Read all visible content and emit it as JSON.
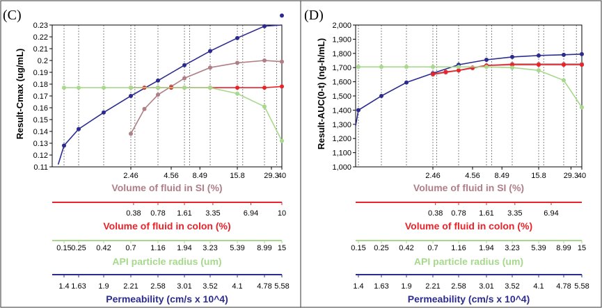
{
  "colors": {
    "si": "#b07e86",
    "colon": "#e8232a",
    "radius": "#a6d98c",
    "perm": "#2b2b8f",
    "grid": "#555555"
  },
  "chart_data": [
    {
      "type": "line",
      "panel_label": "(C)",
      "ylabel": "Result-Cmax (ug/mL)",
      "ylim": [
        0.11,
        0.23
      ],
      "yticks": [
        "0.11",
        "0.12",
        "0.13",
        "0.14",
        "0.15",
        "0.16",
        "0.17",
        "0.18",
        "0.19",
        "0.2",
        "0.21",
        "0.22",
        "0.23"
      ],
      "x_axes": [
        {
          "key": "si",
          "label": "Volume of fluid in SI (%)",
          "ticks": [
            "2.46",
            "4.56",
            "8.49",
            "15.8",
            "29.3",
            "40"
          ]
        },
        {
          "key": "colon",
          "label": "Volume of fluid in colon (%)",
          "ticks": [
            "0.38",
            "0.78",
            "1.61",
            "3.35",
            "6.94",
            "10"
          ]
        },
        {
          "key": "radius",
          "label": "API particle radius (um)",
          "ticks": [
            "0.15",
            "0.25",
            "0.42",
            "0.7",
            "1.16",
            "1.94",
            "3.23",
            "5.39",
            "8.99",
            "15"
          ]
        },
        {
          "key": "perm",
          "label": "Permeability (cm/s x 10^4)",
          "ticks": [
            "1.4",
            "1.63",
            "1.9",
            "2.21",
            "2.58",
            "3.01",
            "3.52",
            "4.1",
            "4.78",
            "5.58"
          ]
        }
      ],
      "series": [
        {
          "name": "Permeability",
          "key": "perm",
          "x": [
            0,
            1,
            2,
            3,
            4,
            5,
            6,
            7,
            8,
            9
          ],
          "y": [
            0.128,
            0.142,
            0.156,
            0.17,
            0.183,
            0.196,
            0.208,
            0.219,
            0.229,
            0.238
          ],
          "curve": [
            [
              -0.4,
              0.112
            ],
            [
              9.6,
              0.23
            ]
          ]
        },
        {
          "name": "Volume of fluid in SI",
          "key": "si",
          "x": [
            3,
            3.5,
            4,
            4.5,
            5,
            6,
            7,
            8,
            9
          ],
          "y": [
            0.138,
            0.159,
            0.171,
            0.178,
            0.185,
            0.194,
            0.198,
            0.2,
            0.199
          ]
        },
        {
          "name": "Volume of fluid in colon",
          "key": "colon",
          "x": [
            3,
            3.5,
            4,
            4.5,
            5,
            6,
            7,
            8,
            9
          ],
          "y": [
            0.177,
            0.177,
            0.177,
            0.177,
            0.177,
            0.177,
            0.177,
            0.177,
            0.178
          ]
        },
        {
          "name": "API particle radius",
          "key": "radius",
          "x": [
            0,
            1,
            2,
            3,
            4,
            5,
            6,
            7,
            8,
            9
          ],
          "y": [
            0.177,
            0.177,
            0.177,
            0.177,
            0.177,
            0.177,
            0.177,
            0.172,
            0.161,
            0.132
          ]
        }
      ]
    },
    {
      "type": "line",
      "panel_label": "(D)",
      "ylabel": "Result-AUC(0-t) (ng-h/mL)",
      "ylim": [
        1000,
        2000
      ],
      "yticks": [
        "1,000",
        "1,100",
        "1,200",
        "1,300",
        "1,400",
        "1,500",
        "1,600",
        "1,700",
        "1,800",
        "1,900",
        "2,000"
      ],
      "x_axes": [
        {
          "key": "si",
          "label": "Volume of fluid in SI (%)",
          "ticks": [
            "2.46",
            "4.56",
            "8.49",
            "15.8",
            "29.3",
            "40"
          ]
        },
        {
          "key": "colon",
          "label": "Volume of fluid in colon (%)",
          "ticks": [
            "0.38",
            "0.78",
            "1.61",
            "3.35",
            "6.94"
          ]
        },
        {
          "key": "radius",
          "label": "API particle radius (um)",
          "ticks": [
            "0.15",
            "0.25",
            "0.42",
            "0.7",
            "1.16",
            "1.94",
            "3.23",
            "5.39",
            "8.99",
            "15"
          ]
        },
        {
          "key": "perm",
          "label": "Permeability (cm/s x 10^4)",
          "ticks": [
            "1.4",
            "1.63",
            "1.9",
            "2.21",
            "2.58",
            "3.01",
            "3.52",
            "4.1",
            "4.78",
            "5.58"
          ]
        }
      ],
      "series": [
        {
          "name": "Permeability",
          "key": "perm",
          "x": [
            0,
            1,
            2,
            3,
            4,
            5,
            6,
            7,
            8,
            9
          ],
          "y": [
            1400,
            1500,
            1595,
            1660,
            1720,
            1755,
            1775,
            1785,
            1790,
            1795
          ],
          "curve": [
            [
              -0.5,
              1290
            ]
          ]
        },
        {
          "name": "Volume of fluid in SI",
          "key": "si",
          "x": [
            3,
            3.5,
            4,
            4.5,
            5,
            6,
            7,
            8,
            9
          ],
          "y": [
            1650,
            1665,
            1680,
            1695,
            1715,
            1725,
            1725,
            1725,
            1725
          ]
        },
        {
          "name": "Volume of fluid in colon",
          "key": "colon",
          "x": [
            3,
            3.5,
            4,
            4.5,
            5,
            6,
            7,
            8,
            9
          ],
          "y": [
            1655,
            1670,
            1680,
            1700,
            1715,
            1720,
            1720,
            1720,
            1720
          ]
        },
        {
          "name": "API particle radius",
          "key": "radius",
          "x": [
            0,
            1,
            2,
            3,
            4,
            5,
            6,
            7,
            8,
            9
          ],
          "y": [
            1705,
            1705,
            1705,
            1705,
            1705,
            1705,
            1700,
            1680,
            1610,
            1420
          ]
        }
      ]
    }
  ]
}
